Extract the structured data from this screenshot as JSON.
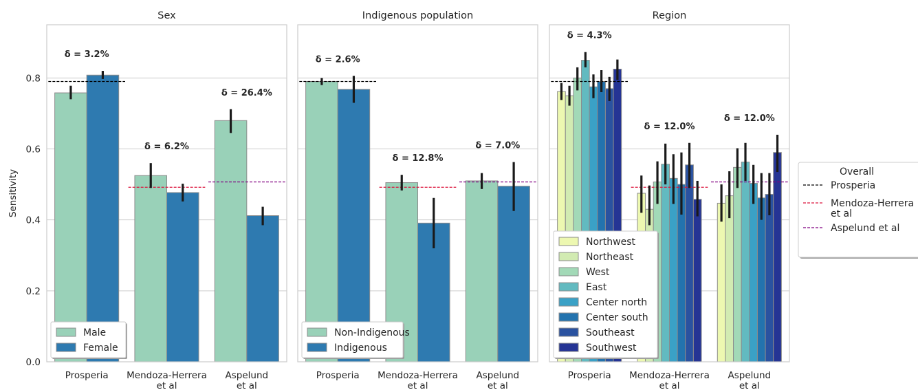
{
  "chart_data": [
    {
      "type": "bar",
      "title": "Sex",
      "ylabel": "Sensitivity",
      "ylim": [
        0,
        0.95
      ],
      "yticks": [
        "0.0",
        "0.2",
        "0.4",
        "0.6",
        "0.8"
      ],
      "categories": [
        "Prosperia",
        "Mendoza-Herrera et al",
        "Aspelund et al"
      ],
      "category_labels": [
        [
          "Prosperia"
        ],
        [
          "Mendoza-Herrera",
          "et al"
        ],
        [
          "Aspelund",
          "et al"
        ]
      ],
      "series": [
        {
          "name": "Male",
          "color": "#99d1b8",
          "values": [
            0.758,
            0.525,
            0.68
          ],
          "err_low": [
            0.74,
            0.49,
            0.645
          ],
          "err_high": [
            0.778,
            0.56,
            0.712
          ]
        },
        {
          "name": "Female",
          "color": "#2e7ab0",
          "values": [
            0.808,
            0.477,
            0.412
          ],
          "err_low": [
            0.797,
            0.452,
            0.385
          ],
          "err_high": [
            0.82,
            0.502,
            0.437
          ]
        }
      ],
      "deltas": [
        "δ = 3.2%",
        "δ = 6.2%",
        "δ = 26.4%"
      ],
      "legend_position": "lower left"
    },
    {
      "type": "bar",
      "title": "Indigenous population",
      "ylim": [
        0,
        0.95
      ],
      "categories": [
        "Prosperia",
        "Mendoza-Herrera et al",
        "Aspelund et al"
      ],
      "category_labels": [
        [
          "Prosperia"
        ],
        [
          "Mendoza-Herrera",
          "et al"
        ],
        [
          "Aspelund",
          "et al"
        ]
      ],
      "series": [
        {
          "name": "Non-Indigenous",
          "color": "#99d1b8",
          "values": [
            0.79,
            0.505,
            0.51
          ],
          "err_low": [
            0.78,
            0.483,
            0.487
          ],
          "err_high": [
            0.8,
            0.527,
            0.532
          ]
        },
        {
          "name": "Indigenous",
          "color": "#2e7ab0",
          "values": [
            0.768,
            0.391,
            0.495
          ],
          "err_low": [
            0.73,
            0.32,
            0.425
          ],
          "err_high": [
            0.806,
            0.462,
            0.563
          ]
        }
      ],
      "deltas": [
        "δ = 2.6%",
        "δ = 12.8%",
        "δ = 7.0%"
      ],
      "legend_position": "lower left"
    },
    {
      "type": "bar",
      "title": "Region",
      "ylim": [
        0,
        0.95
      ],
      "categories": [
        "Prosperia",
        "Mendoza-Herrera et al",
        "Aspelund et al"
      ],
      "category_labels": [
        [
          "Prosperia"
        ],
        [
          "Mendoza-Herrera",
          "et al"
        ],
        [
          "Aspelund",
          "et al"
        ]
      ],
      "series": [
        {
          "name": "Northwest",
          "color": "#edf8b1",
          "values": [
            0.762,
            0.475,
            0.447
          ],
          "err_low": [
            0.738,
            0.42,
            0.395
          ],
          "err_high": [
            0.786,
            0.525,
            0.5
          ]
        },
        {
          "name": "Northeast",
          "color": "#d2ebb2",
          "values": [
            0.75,
            0.43,
            0.468
          ],
          "err_low": [
            0.722,
            0.385,
            0.405
          ],
          "err_high": [
            0.778,
            0.497,
            0.537
          ]
        },
        {
          "name": "West",
          "color": "#a2d9b7",
          "values": [
            0.8,
            0.507,
            0.548
          ],
          "err_low": [
            0.765,
            0.445,
            0.49
          ],
          "err_high": [
            0.83,
            0.565,
            0.602
          ]
        },
        {
          "name": "East",
          "color": "#62bac0",
          "values": [
            0.85,
            0.557,
            0.563
          ],
          "err_low": [
            0.83,
            0.5,
            0.51
          ],
          "err_high": [
            0.873,
            0.615,
            0.617
          ]
        },
        {
          "name": "Center north",
          "color": "#3aa1c6",
          "values": [
            0.775,
            0.517,
            0.503
          ],
          "err_low": [
            0.743,
            0.445,
            0.445
          ],
          "err_high": [
            0.81,
            0.585,
            0.555
          ]
        },
        {
          "name": "Center south",
          "color": "#2373ae",
          "values": [
            0.79,
            0.5,
            0.462
          ],
          "err_low": [
            0.76,
            0.415,
            0.4
          ],
          "err_high": [
            0.822,
            0.59,
            0.532
          ]
        },
        {
          "name": "Southeast",
          "color": "#2a52a0",
          "values": [
            0.77,
            0.555,
            0.472
          ],
          "err_low": [
            0.735,
            0.49,
            0.413
          ],
          "err_high": [
            0.803,
            0.617,
            0.532
          ]
        },
        {
          "name": "Southwest",
          "color": "#253494",
          "values": [
            0.825,
            0.458,
            0.59
          ],
          "err_low": [
            0.795,
            0.41,
            0.535
          ],
          "err_high": [
            0.852,
            0.51,
            0.64
          ]
        }
      ],
      "deltas": [
        "δ = 4.3%",
        "δ = 12.0%",
        "δ = 12.0%"
      ],
      "legend_position": "lower left"
    }
  ],
  "overall": {
    "title": "Overall",
    "lines": [
      {
        "name": "Prosperia",
        "label_lines": [
          "Prosperia"
        ],
        "value": 0.79,
        "color": "#000000",
        "category": 0
      },
      {
        "name": "Mendoza-Herrera et al",
        "label_lines": [
          "Mendoza-Herrera",
          "et al"
        ],
        "value": 0.492,
        "color": "#dc143c",
        "category": 1
      },
      {
        "name": "Aspelund et al",
        "label_lines": [
          "Aspelund et al"
        ],
        "value": 0.507,
        "color": "#800080",
        "category": 2
      }
    ]
  }
}
